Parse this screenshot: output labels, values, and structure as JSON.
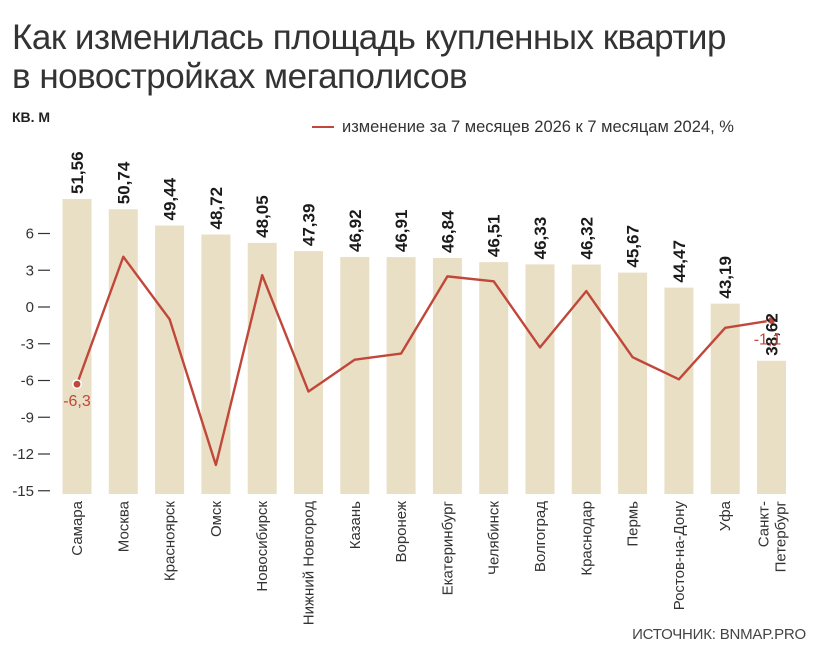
{
  "header": {
    "title_line1": "Как изменилась площадь купленных квартир",
    "title_line2": "в новостройках мегаполисов",
    "unit": "КВ. М"
  },
  "legend": {
    "label": "изменение за 7 месяцев 2026 к 7 месяцам 2024, %"
  },
  "source": "ИСТОЧНИК: BNMAP.PRO",
  "colors": {
    "bar": "#e9dfc4",
    "line": "#c0473a",
    "text": "#222222"
  },
  "chart_data": {
    "type": "bar",
    "title": "Как изменилась площадь купленных квартир в новостройках мегаполисов",
    "categories": [
      "Самара",
      "Москва",
      "Красноярск",
      "Омск",
      "Новосибирск",
      "Нижний Новгород",
      "Казань",
      "Воронеж",
      "Екатеринбург",
      "Челябинск",
      "Волгоград",
      "Краснодар",
      "Пермь",
      "Ростов-на-Дону",
      "Уфа",
      "Санкт-Петербург"
    ],
    "category_lines": [
      [
        "Самара"
      ],
      [
        "Москва"
      ],
      [
        "Красноярск"
      ],
      [
        "Омск"
      ],
      [
        "Новосибирск"
      ],
      [
        "Нижний Новгород"
      ],
      [
        "Казань"
      ],
      [
        "Воронеж"
      ],
      [
        "Екатеринбург"
      ],
      [
        "Челябинск"
      ],
      [
        "Волгоград"
      ],
      [
        "Краснодар"
      ],
      [
        "Пермь"
      ],
      [
        "Ростов-на-Дону"
      ],
      [
        "Уфа"
      ],
      [
        "Санкт-",
        "Петербург"
      ]
    ],
    "bar_labels": [
      "51,56",
      "50,74",
      "49,44",
      "48,72",
      "48,05",
      "47,39",
      "46,92",
      "46,91",
      "46,84",
      "46,51",
      "46,33",
      "46,32",
      "45,67",
      "44,47",
      "43,19",
      "38,62"
    ],
    "series": [
      {
        "name": "кв. м",
        "kind": "bar",
        "values": [
          51.56,
          50.74,
          49.44,
          48.72,
          48.05,
          47.39,
          46.92,
          46.91,
          46.84,
          46.51,
          46.33,
          46.32,
          45.67,
          44.47,
          43.19,
          38.62
        ]
      },
      {
        "name": "изменение за 7 месяцев 2026 к 7 месяцам 2024, %",
        "kind": "line",
        "values": [
          -6.3,
          4.1,
          -1.0,
          -12.9,
          2.6,
          -6.9,
          -4.3,
          -3.8,
          2.5,
          2.1,
          -3.3,
          1.3,
          -4.1,
          -5.9,
          -1.7,
          -1.1
        ]
      }
    ],
    "point_labels": [
      {
        "index": 0,
        "text": "-6,3"
      },
      {
        "index": 15,
        "text": "-1,1"
      }
    ],
    "y_axis": {
      "ticks": [
        6,
        3,
        0,
        -3,
        -6,
        -9,
        -12,
        -15
      ],
      "tick_labels": [
        "6",
        "3",
        "0",
        "-3",
        "-6",
        "-9",
        "-12",
        "-15"
      ],
      "ylim": [
        -15,
        6
      ]
    },
    "grid": false,
    "legend_position": "top-right"
  }
}
